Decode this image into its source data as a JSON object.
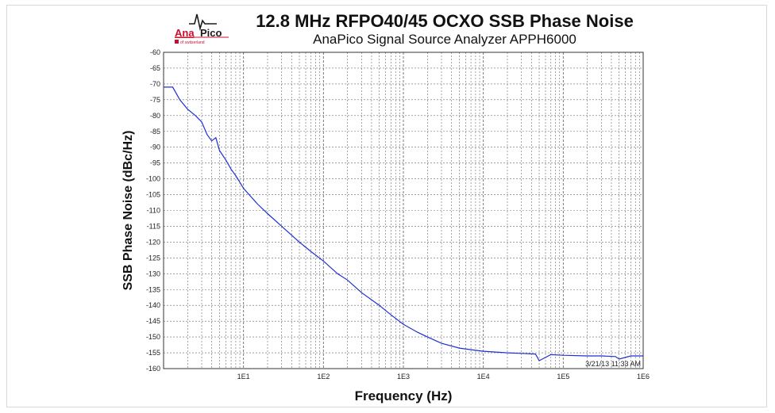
{
  "header": {
    "logo_ana": "Ana",
    "logo_pico": "Pico",
    "logo_tagline": "of switzerland",
    "title": "12.8 MHz RFPO40/45 OCXO SSB Phase Noise",
    "subtitle": "AnaPico Signal Source Analyzer APPH6000"
  },
  "colors": {
    "trace": "#1f2fd6",
    "grid": "#6a6a6a",
    "brand_red": "#c8102e"
  },
  "chart_data": {
    "type": "line",
    "title": "12.8 MHz RFPO40/45 OCXO SSB Phase Noise",
    "subtitle": "AnaPico Signal Source Analyzer APPH6000",
    "xlabel": "Frequency (Hz)",
    "ylabel": "SSB Phase Noise (dBc/Hz)",
    "x_scale": "log",
    "xlim": [
      1,
      1000000
    ],
    "ylim": [
      -160,
      -60
    ],
    "x_tick_labels": [
      "1E1",
      "1E2",
      "1E3",
      "1E4",
      "1E5",
      "1E6"
    ],
    "y_tick_labels": [
      "-60",
      "-65",
      "-70",
      "-75",
      "-80",
      "-85",
      "-90",
      "-95",
      "-100",
      "-105",
      "-110",
      "-115",
      "-120",
      "-125",
      "-130",
      "-135",
      "-140",
      "-145",
      "-150",
      "-155",
      "-160"
    ],
    "grid": true,
    "annotation": "3/21/13  11:33 AM",
    "series": [
      {
        "x": [
          1,
          1.3,
          1.6,
          2,
          2.5,
          3,
          3.5,
          4,
          4.5,
          5,
          6,
          7,
          8,
          10,
          15,
          20,
          30,
          50,
          70,
          100,
          150,
          200,
          300,
          500,
          700,
          1000,
          1500,
          2000,
          3000,
          5000,
          7000,
          10000,
          20000,
          30000,
          45000,
          50000,
          70000,
          100000,
          200000,
          300000,
          450000,
          500000,
          700000,
          1000000
        ],
        "y": [
          -71,
          -71,
          -75,
          -78,
          -80,
          -82,
          -86,
          -88,
          -87,
          -91,
          -94,
          -97,
          -99,
          -103,
          -108,
          -111,
          -115,
          -120,
          -123,
          -126,
          -130,
          -132,
          -136,
          -140,
          -143,
          -146,
          -148.5,
          -150,
          -152,
          -153.5,
          -154,
          -154.5,
          -155,
          -155.2,
          -155.4,
          -157.5,
          -155.6,
          -155.8,
          -156,
          -156,
          -156.2,
          -157,
          -156,
          -156
        ]
      }
    ]
  }
}
